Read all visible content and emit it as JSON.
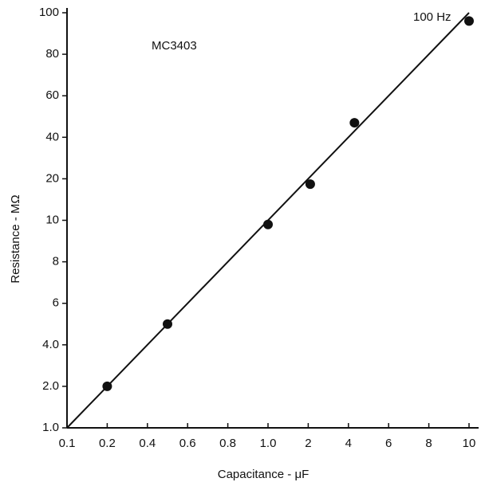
{
  "chart_data": {
    "type": "scatter",
    "x_label": "Capacitance - μF",
    "y_label": "Resistance - MΩ",
    "annotations": [
      "MC3403",
      "100 Hz"
    ],
    "x": [
      0.2,
      0.5,
      1.0,
      2.1,
      4.3,
      10
    ],
    "values": [
      2.0,
      5,
      9.8,
      18.7,
      47,
      96
    ],
    "line": {
      "x": [
        0.1,
        10
      ],
      "values": [
        1.0,
        100
      ]
    },
    "color": "#111111",
    "xlim": [
      0.1,
      10
    ],
    "ylim": [
      1.0,
      100
    ],
    "xticks": [
      0.1,
      0.2,
      0.4,
      0.6,
      0.8,
      {
        "value": 1,
        "label": "1.0"
      },
      2,
      4,
      6,
      8,
      10
    ],
    "yticks": [
      {
        "value": 1,
        "label": "1.0"
      },
      {
        "value": 2,
        "label": "2.0"
      },
      {
        "value": 4,
        "label": "4.0"
      },
      6,
      8,
      10,
      20,
      40,
      60,
      80,
      100
    ],
    "grid": false
  }
}
